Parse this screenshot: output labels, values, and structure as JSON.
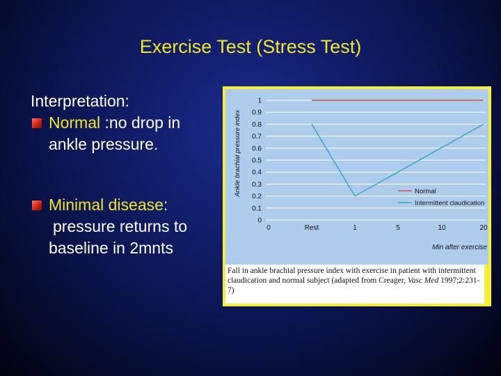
{
  "slide": {
    "title": "Exercise Test (Stress Test)",
    "interpretation_label": "Interpretation:",
    "bullets": [
      {
        "key": "Normal",
        "rest_line1": " :no drop in",
        "line2": "ankle pressure."
      },
      {
        "key": "Minimal disease",
        "rest_line1": ":",
        "line2": "pressure returns to",
        "line3": "baseline in 2mnts"
      }
    ]
  },
  "figure": {
    "caption_part1": "Fall in ankle brachial pressure index with exercise in patient with intermittent claudication and normal subject (adapted from Creager, ",
    "caption_journal": "Vasc Med",
    "caption_part2": " 1997;2:231-7)"
  },
  "chart_data": {
    "type": "line",
    "categories": [
      "0",
      "Rest",
      "1",
      "5",
      "10",
      "20"
    ],
    "xlabel": "Min after exercise",
    "ylabel": "Ankle brachial pressure index",
    "ylim": [
      0,
      1
    ],
    "yticks": [
      "0",
      "0.1",
      "0.2",
      "0.3",
      "0.4",
      "0.5",
      "0.6",
      "0.7",
      "0.8",
      "0.9",
      "1"
    ],
    "grid": true,
    "legend_position": "right",
    "series": [
      {
        "name": "Normal",
        "color": "#e0502c",
        "points": [
          [
            "Rest",
            1.0
          ],
          [
            "1",
            1.0
          ],
          [
            "5",
            1.0
          ],
          [
            "10",
            1.0
          ],
          [
            "20",
            1.0
          ]
        ]
      },
      {
        "name": "Intermittent claudication",
        "color": "#2ba6c8",
        "points": [
          [
            "Rest",
            0.8
          ],
          [
            "1",
            0.2
          ],
          [
            "20",
            0.8
          ]
        ]
      }
    ]
  }
}
